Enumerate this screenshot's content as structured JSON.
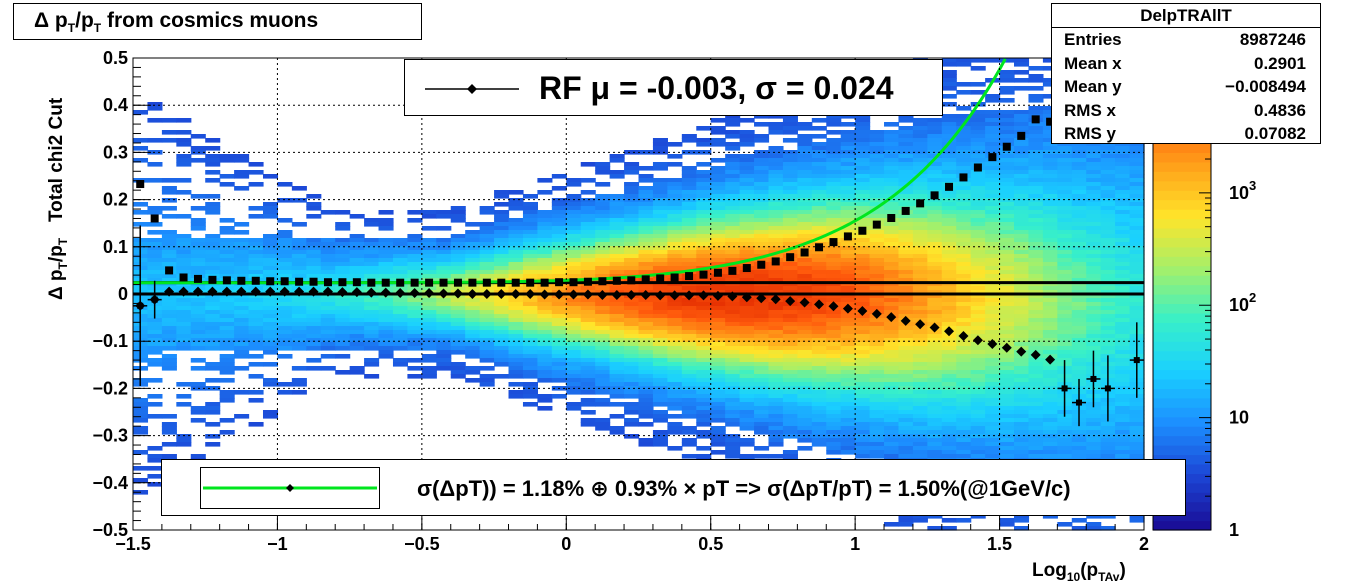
{
  "title": "Δ p_T/p_T from cosmics muons",
  "stats": {
    "name": "DelpTRAllT",
    "rows": [
      {
        "label": "Entries",
        "value": "8987246"
      },
      {
        "label": "Mean x",
        "value": "0.2901"
      },
      {
        "label": "Mean y",
        "value": "−0.008494"
      },
      {
        "label": "RMS x",
        "value": "0.4836"
      },
      {
        "label": "RMS y",
        "value": "0.07082"
      }
    ]
  },
  "legend_top": "RF μ = -0.003, σ =   0.024",
  "legend_bottom": "σ(ΔpT)) =  1.18% ⊕  0.93% × pT => σ(ΔpT/pT) =  1.50%(@1GeV/c)",
  "colors": {
    "fit_curve": "#00e61e",
    "markers": "#000000",
    "palette": [
      "#1a0f99",
      "#1c47d6",
      "#1c8fff",
      "#1ad0ff",
      "#38f0c8",
      "#a4f06a",
      "#ffe52a",
      "#ffa11a",
      "#ff5a0c",
      "#e22a00"
    ]
  },
  "chart_data": {
    "type": "heatmap",
    "title": "Δ p_T/p_T from cosmics muons",
    "xlabel": "Log_10(p_TAv)",
    "ylabel": "Δ p_T/p_T   Total chi2 Cut",
    "xlim": [
      -1.5,
      2
    ],
    "ylim": [
      -0.5,
      0.5
    ],
    "zscale": "log",
    "xticks": [
      "−1.5",
      "−1",
      "−0.5",
      "0",
      "0.5",
      "1",
      "1.5",
      "2"
    ],
    "yticks": [
      "−0.5",
      "−0.4",
      "−0.3",
      "−0.2",
      "−0.1",
      "0",
      "0.1",
      "0.2",
      "0.3",
      "0.4",
      "0.5"
    ],
    "zticks": [
      {
        "base": "1",
        "exp": ""
      },
      {
        "base": "10",
        "exp": ""
      },
      {
        "base": "10",
        "exp": "2"
      },
      {
        "base": "10",
        "exp": "3"
      }
    ],
    "series": [
      {
        "name": "RF",
        "marker": "diamond",
        "x": [
          -1.475,
          -1.425,
          -1.375,
          -1.325,
          -1.275,
          -1.225,
          -1.175,
          -1.125,
          -1.075,
          -1.025,
          -0.975,
          -0.925,
          -0.875,
          -0.825,
          -0.775,
          -0.725,
          -0.675,
          -0.625,
          -0.575,
          -0.525,
          -0.475,
          -0.425,
          -0.375,
          -0.325,
          -0.275,
          -0.225,
          -0.175,
          -0.125,
          -0.075,
          -0.025,
          0.025,
          0.075,
          0.125,
          0.175,
          0.225,
          0.275,
          0.325,
          0.375,
          0.425,
          0.475,
          0.525,
          0.575,
          0.625,
          0.675,
          0.725,
          0.775,
          0.825,
          0.875,
          0.925,
          0.975,
          1.025,
          1.075,
          1.125,
          1.175,
          1.225,
          1.275,
          1.325,
          1.375,
          1.425,
          1.475,
          1.525,
          1.575,
          1.625,
          1.675
        ],
        "y": [
          -0.025,
          -0.012,
          0.005,
          0.005,
          0.005,
          0.005,
          0.005,
          0.005,
          0.005,
          0.005,
          0.005,
          0.005,
          0.005,
          0.005,
          0.004,
          0.004,
          0.003,
          0.003,
          0.002,
          0.002,
          0.002,
          0.001,
          0.001,
          0.0,
          0.0,
          0.0,
          0.0,
          0.0,
          -0.001,
          -0.001,
          -0.001,
          -0.001,
          -0.002,
          -0.002,
          -0.002,
          -0.002,
          -0.003,
          -0.003,
          -0.003,
          -0.003,
          -0.004,
          -0.005,
          -0.007,
          -0.009,
          -0.011,
          -0.015,
          -0.018,
          -0.022,
          -0.026,
          -0.031,
          -0.036,
          -0.042,
          -0.049,
          -0.057,
          -0.064,
          -0.071,
          -0.079,
          -0.089,
          -0.098,
          -0.106,
          -0.114,
          -0.122,
          -0.129,
          -0.139
        ]
      },
      {
        "name": "",
        "marker": "square",
        "x": [
          -1.475,
          -1.425,
          -1.375,
          -1.325,
          -1.275,
          -1.225,
          -1.175,
          -1.125,
          -1.075,
          -1.025,
          -0.975,
          -0.925,
          -0.875,
          -0.825,
          -0.775,
          -0.725,
          -0.675,
          -0.625,
          -0.575,
          -0.525,
          -0.475,
          -0.425,
          -0.375,
          -0.325,
          -0.275,
          -0.225,
          -0.175,
          -0.125,
          -0.075,
          -0.025,
          0.025,
          0.075,
          0.125,
          0.175,
          0.225,
          0.275,
          0.325,
          0.375,
          0.425,
          0.475,
          0.525,
          0.575,
          0.625,
          0.675,
          0.725,
          0.775,
          0.825,
          0.875,
          0.925,
          0.975,
          1.025,
          1.075,
          1.125,
          1.175,
          1.225,
          1.275,
          1.325,
          1.375,
          1.425,
          1.475,
          1.525,
          1.575,
          1.625,
          1.675
        ],
        "y": [
          0.233,
          0.16,
          0.05,
          0.035,
          0.032,
          0.03,
          0.029,
          0.028,
          0.028,
          0.027,
          0.027,
          0.026,
          0.026,
          0.025,
          0.025,
          0.025,
          0.024,
          0.024,
          0.024,
          0.024,
          0.024,
          0.024,
          0.024,
          0.024,
          0.024,
          0.024,
          0.024,
          0.024,
          0.024,
          0.025,
          0.025,
          0.026,
          0.027,
          0.028,
          0.029,
          0.031,
          0.033,
          0.035,
          0.038,
          0.041,
          0.045,
          0.049,
          0.055,
          0.062,
          0.069,
          0.078,
          0.088,
          0.099,
          0.11,
          0.122,
          0.134,
          0.147,
          0.161,
          0.176,
          0.192,
          0.209,
          0.227,
          0.247,
          0.268,
          0.29,
          0.312,
          0.335,
          0.37,
          0.365
        ]
      },
      {
        "name": "",
        "marker": "errorbar",
        "x": [
          -1.475,
          -1.425,
          1.725,
          1.775,
          1.825,
          1.875,
          1.975
        ],
        "y": [
          -0.025,
          -0.012,
          -0.2,
          -0.23,
          -0.18,
          -0.2,
          -0.14
        ],
        "yerr": [
          0.17,
          0.04,
          0.06,
          0.05,
          0.06,
          0.07,
          0.08
        ]
      },
      {
        "name": "",
        "marker": "line",
        "x": [
          -1.5,
          2
        ],
        "y": [
          0.024,
          0.024
        ]
      },
      {
        "name": "",
        "marker": "line",
        "x": [
          -1.5,
          2
        ],
        "y": [
          0.0,
          0.0
        ]
      },
      {
        "name": "",
        "marker": "curve",
        "formula": "sqrt(0.0118^2 + (0.0093*pT)^2)*1.6 + 0.005",
        "x_range": [
          -1.5,
          1.6
        ]
      }
    ]
  }
}
